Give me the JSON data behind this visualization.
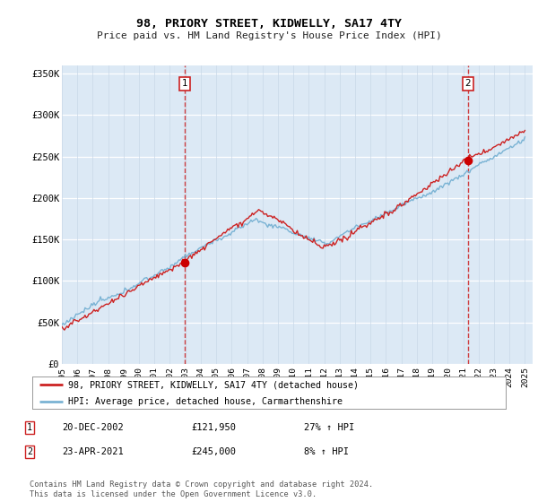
{
  "title": "98, PRIORY STREET, KIDWELLY, SA17 4TY",
  "subtitle": "Price paid vs. HM Land Registry's House Price Index (HPI)",
  "plot_bg_color": "#dce9f5",
  "ylim": [
    0,
    360000
  ],
  "yticks": [
    0,
    50000,
    100000,
    150000,
    200000,
    250000,
    300000,
    350000
  ],
  "ytick_labels": [
    "£0",
    "£50K",
    "£100K",
    "£150K",
    "£200K",
    "£250K",
    "£300K",
    "£350K"
  ],
  "sale1_year": 2002.97,
  "sale1_price": 121950,
  "sale2_year": 2021.31,
  "sale2_price": 245000,
  "legend_line1": "98, PRIORY STREET, KIDWELLY, SA17 4TY (detached house)",
  "legend_line2": "HPI: Average price, detached house, Carmarthenshire",
  "table_row1": [
    "1",
    "20-DEC-2002",
    "£121,950",
    "27% ↑ HPI"
  ],
  "table_row2": [
    "2",
    "23-APR-2021",
    "£245,000",
    "8% ↑ HPI"
  ],
  "footnote": "Contains HM Land Registry data © Crown copyright and database right 2024.\nThis data is licensed under the Open Government Licence v3.0.",
  "hpi_color": "#7ab3d4",
  "price_color": "#cc2222",
  "vline_color": "#cc2222",
  "dot_color": "#cc0000",
  "grid_color": "#c8d8e8",
  "xmin": 1995,
  "xmax": 2025.5
}
